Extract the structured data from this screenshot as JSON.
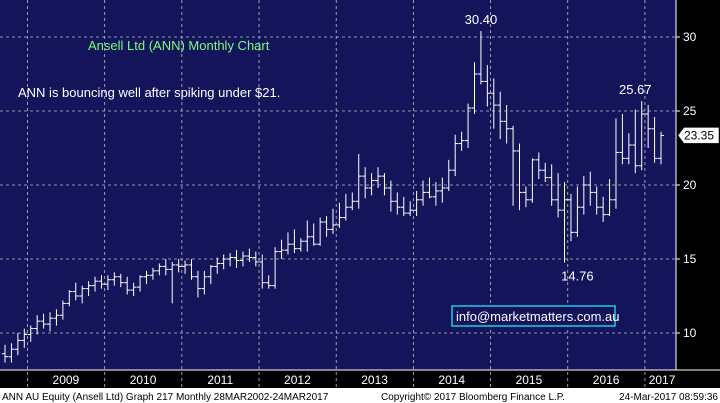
{
  "chart_data": {
    "type": "ohlc",
    "title": "Ansell Ltd (ANN) Monthly Chart",
    "annotation": "ANN is bouncing well after spiking under $21.",
    "website": "info@marketmatters.com.au",
    "price_labels": [
      {
        "text": "30.40",
        "value": 30.4,
        "x": "2014-11"
      },
      {
        "text": "25.67",
        "value": 25.67,
        "x": "2016-11"
      },
      {
        "text": "14.76",
        "value": 14.76,
        "x": "2016-02"
      }
    ],
    "last_price": {
      "text": "23.35",
      "value": 23.35
    },
    "ylim": [
      7.5,
      32.5
    ],
    "yticks": [
      10,
      15,
      20,
      25,
      30
    ],
    "xticks": [
      "2009",
      "2010",
      "2011",
      "2012",
      "2013",
      "2014",
      "2015",
      "2016",
      "2017"
    ],
    "grid": true,
    "colors": {
      "background": "#14145a",
      "bars": "#ffffff",
      "grid": "#bfbfbf",
      "title": "#7cfc7c",
      "footer_bg": "#ffffff"
    },
    "x": [
      "2008-09",
      "2008-10",
      "2008-11",
      "2008-12",
      "2009-01",
      "2009-02",
      "2009-03",
      "2009-04",
      "2009-05",
      "2009-06",
      "2009-07",
      "2009-08",
      "2009-09",
      "2009-10",
      "2009-11",
      "2009-12",
      "2010-01",
      "2010-02",
      "2010-03",
      "2010-04",
      "2010-05",
      "2010-06",
      "2010-07",
      "2010-08",
      "2010-09",
      "2010-10",
      "2010-11",
      "2010-12",
      "2011-01",
      "2011-02",
      "2011-03",
      "2011-04",
      "2011-05",
      "2011-06",
      "2011-07",
      "2011-08",
      "2011-09",
      "2011-10",
      "2011-11",
      "2011-12",
      "2012-01",
      "2012-02",
      "2012-03",
      "2012-04",
      "2012-05",
      "2012-06",
      "2012-07",
      "2012-08",
      "2012-09",
      "2012-10",
      "2012-11",
      "2012-12",
      "2013-01",
      "2013-02",
      "2013-03",
      "2013-04",
      "2013-05",
      "2013-06",
      "2013-07",
      "2013-08",
      "2013-09",
      "2013-10",
      "2013-11",
      "2013-12",
      "2014-01",
      "2014-02",
      "2014-03",
      "2014-04",
      "2014-05",
      "2014-06",
      "2014-07",
      "2014-08",
      "2014-09",
      "2014-10",
      "2014-11",
      "2014-12",
      "2015-01",
      "2015-02",
      "2015-03",
      "2015-04",
      "2015-05",
      "2015-06",
      "2015-07",
      "2015-08",
      "2015-09",
      "2015-10",
      "2015-11",
      "2015-12",
      "2016-01",
      "2016-02",
      "2016-03",
      "2016-04",
      "2016-05",
      "2016-06",
      "2016-07",
      "2016-08",
      "2016-09",
      "2016-10",
      "2016-11",
      "2016-12",
      "2017-01",
      "2017-02",
      "2017-03"
    ],
    "open": [
      8.6,
      8.4,
      8.9,
      9.5,
      9.9,
      10.3,
      10.8,
      10.6,
      11.0,
      11.2,
      12.0,
      12.8,
      12.5,
      13.0,
      13.2,
      13.5,
      13.3,
      13.6,
      13.8,
      13.4,
      12.9,
      13.1,
      13.8,
      13.9,
      14.2,
      14.5,
      14.3,
      14.6,
      14.5,
      14.6,
      13.8,
      13.0,
      13.8,
      14.5,
      14.7,
      15.0,
      15.1,
      14.9,
      15.2,
      15.1,
      14.8,
      13.4,
      13.2,
      15.5,
      15.6,
      16.0,
      15.7,
      16.2,
      16.5,
      16.0,
      17.5,
      17.0,
      17.3,
      17.8,
      18.5,
      18.9,
      20.6,
      19.8,
      20.3,
      20.6,
      19.8,
      18.9,
      18.5,
      18.1,
      18.3,
      19.0,
      19.5,
      19.2,
      19.6,
      19.8,
      21.0,
      22.8,
      23.0,
      25.2,
      27.5,
      27.0,
      26.2,
      25.4,
      24.3,
      23.8,
      22.3,
      19.5,
      19.0,
      21.7,
      21.0,
      20.5,
      19.0,
      18.3,
      19.0,
      16.8,
      18.5,
      20.0,
      19.5,
      18.5,
      18.0,
      19.0,
      22.2,
      21.8,
      22.7,
      21.3,
      24.8,
      23.8,
      21.8
    ],
    "high": [
      9.2,
      9.3,
      10.0,
      10.3,
      10.5,
      11.2,
      11.3,
      11.4,
      11.6,
      12.2,
      12.9,
      13.4,
      13.2,
      13.5,
      13.8,
      13.9,
      13.9,
      14.1,
      14.0,
      13.8,
      13.4,
      13.9,
      14.2,
      14.4,
      14.7,
      15.0,
      14.8,
      15.0,
      14.9,
      15.0,
      14.2,
      14.2,
      14.6,
      15.1,
      15.3,
      15.4,
      15.6,
      15.5,
      15.7,
      15.5,
      15.3,
      13.9,
      15.8,
      16.3,
      16.8,
      17.0,
      16.4,
      17.6,
      17.4,
      17.8,
      17.9,
      18.4,
      18.8,
      19.4,
      19.5,
      22.1,
      21.2,
      20.8,
      21.2,
      20.8,
      20.3,
      19.5,
      19.2,
      18.9,
      19.6,
      20.3,
      20.5,
      20.2,
      20.5,
      21.7,
      23.4,
      23.6,
      25.5,
      28.3,
      30.4,
      28.1,
      27.2,
      26.3,
      25.4,
      24.0,
      22.8,
      19.9,
      21.8,
      22.2,
      21.5,
      21.4,
      20.8,
      20.2,
      19.4,
      19.9,
      20.6,
      20.9,
      19.9,
      19.2,
      20.4,
      24.5,
      24.8,
      23.5,
      25.1,
      25.67,
      25.4,
      24.6,
      23.6
    ],
    "low": [
      8.0,
      8.0,
      8.5,
      9.0,
      9.4,
      9.9,
      10.3,
      10.1,
      10.5,
      10.9,
      11.8,
      12.2,
      12.0,
      12.5,
      12.8,
      13.0,
      12.9,
      13.2,
      13.1,
      12.6,
      12.5,
      12.8,
      13.3,
      13.6,
      13.9,
      13.9,
      12.0,
      14.1,
      14.0,
      13.6,
      12.4,
      12.6,
      13.3,
      14.0,
      14.3,
      14.5,
      14.4,
      14.5,
      14.8,
      14.5,
      13.0,
      13.0,
      13.0,
      15.0,
      15.3,
      15.4,
      15.5,
      15.5,
      15.9,
      15.9,
      16.5,
      16.7,
      17.1,
      17.6,
      18.3,
      18.4,
      19.1,
      19.3,
      19.8,
      19.3,
      18.2,
      18.0,
      17.9,
      17.9,
      17.9,
      18.6,
      19.1,
      18.6,
      18.8,
      19.6,
      20.6,
      22.3,
      22.5,
      24.8,
      26.8,
      25.3,
      23.8,
      23.1,
      22.8,
      18.6,
      18.3,
      18.5,
      18.8,
      20.4,
      20.2,
      18.6,
      17.8,
      14.76,
      16.2,
      16.5,
      18.0,
      18.6,
      18.0,
      17.5,
      17.9,
      18.4,
      21.4,
      21.4,
      20.8,
      21.0,
      22.5,
      21.5,
      21.4
    ],
    "close": [
      8.4,
      8.9,
      9.5,
      9.9,
      10.3,
      10.8,
      10.6,
      11.0,
      11.2,
      12.0,
      12.8,
      12.5,
      13.0,
      13.2,
      13.5,
      13.3,
      13.6,
      13.8,
      13.4,
      12.9,
      13.1,
      13.8,
      13.9,
      14.2,
      14.5,
      14.3,
      14.6,
      14.5,
      14.6,
      13.8,
      13.0,
      13.8,
      14.5,
      14.7,
      15.0,
      15.1,
      14.9,
      15.2,
      15.1,
      14.8,
      13.4,
      13.2,
      15.5,
      15.6,
      16.0,
      15.7,
      16.2,
      16.5,
      16.0,
      17.5,
      17.0,
      17.3,
      17.8,
      18.5,
      18.9,
      20.6,
      19.8,
      20.3,
      20.6,
      19.8,
      18.9,
      18.5,
      18.1,
      18.3,
      19.0,
      19.5,
      19.2,
      19.6,
      19.8,
      21.0,
      22.8,
      23.0,
      25.2,
      27.5,
      27.0,
      26.2,
      25.4,
      24.3,
      23.8,
      22.3,
      19.5,
      19.0,
      21.7,
      21.0,
      20.5,
      19.0,
      18.3,
      19.0,
      16.8,
      18.5,
      20.0,
      19.5,
      18.5,
      18.0,
      19.0,
      22.2,
      21.8,
      22.7,
      21.3,
      24.8,
      23.8,
      21.8,
      23.35
    ]
  },
  "footer": {
    "left": "ANN AU Equity (Ansell Ltd) Graph 217  Monthly 28MAR2002-24MAR2017",
    "center": "Copyright© 2017 Bloomberg Finance L.P.",
    "right": "24-Mar-2017 08:59:36"
  }
}
